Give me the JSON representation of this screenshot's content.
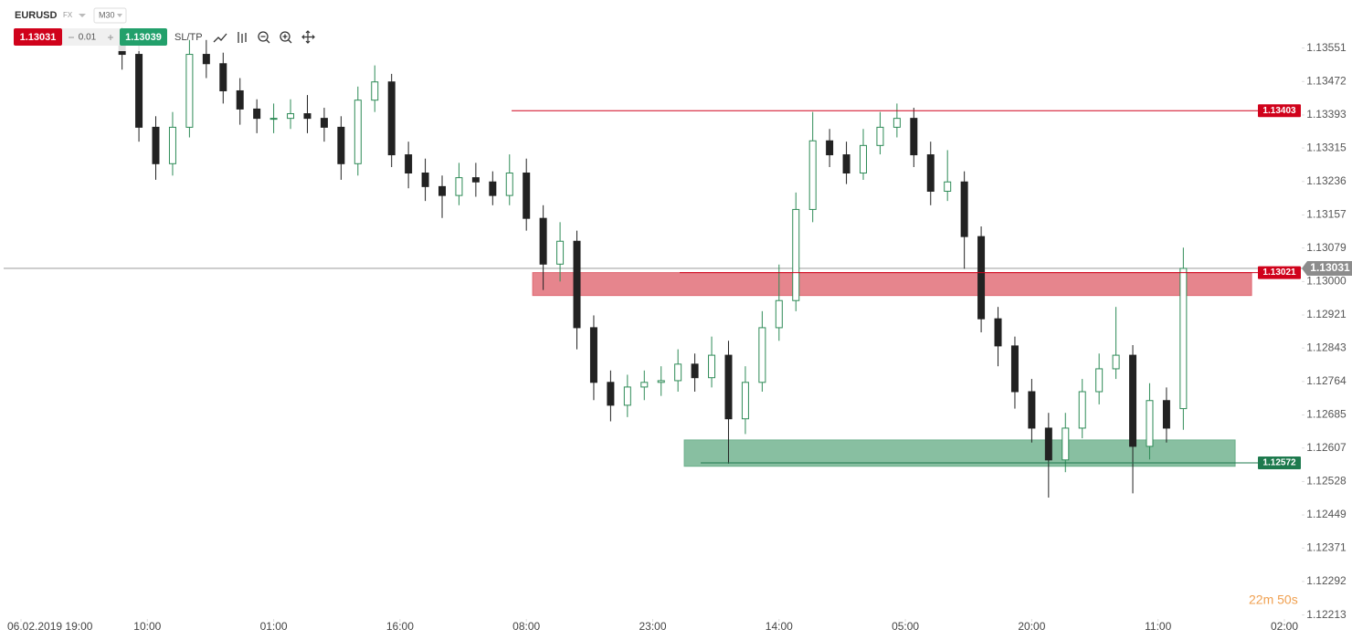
{
  "header": {
    "symbol": "EURUSD",
    "market": "FX",
    "timeframe": "M30",
    "bid": "1.13031",
    "lot": "0.01",
    "ask": "1.13039",
    "sltp": "SL/TP"
  },
  "chart_data": {
    "type": "candlestick",
    "x": [
      24,
      28,
      32,
      36,
      40,
      44,
      48,
      52,
      56,
      60,
      64,
      68,
      72,
      76,
      80,
      84,
      88,
      92,
      96,
      100,
      104,
      108,
      112,
      116,
      120,
      124,
      128,
      132,
      136,
      140,
      144,
      148,
      152,
      156,
      160,
      164,
      168,
      172,
      176,
      180,
      184,
      188,
      192,
      196,
      200,
      204,
      208,
      212,
      216,
      220,
      224,
      228,
      232,
      236,
      240,
      244,
      248,
      252,
      256,
      260,
      264,
      268,
      272,
      276
    ],
    "open": [
      1.1356,
      1.13536,
      1.13364,
      1.13278,
      1.13364,
      1.13536,
      1.13514,
      1.1345,
      1.13407,
      1.13385,
      1.13385,
      1.13396,
      1.13385,
      1.13364,
      1.13278,
      1.13428,
      1.13471,
      1.13299,
      1.13256,
      1.13224,
      1.13203,
      1.13245,
      1.13235,
      1.13203,
      1.13256,
      1.13149,
      1.13041,
      1.13095,
      1.12891,
      1.12762,
      1.12708,
      1.12751,
      1.12762,
      1.12766,
      1.12805,
      1.12773,
      1.12826,
      1.12676,
      1.12762,
      1.12891,
      1.12955,
      1.1317,
      1.13332,
      1.13299,
      1.13256,
      1.13321,
      1.13364,
      1.13385,
      1.13299,
      1.13213,
      1.13235,
      1.13106,
      1.12912,
      1.12848,
      1.1274,
      1.12654,
      1.12579,
      1.12654,
      1.1274,
      1.12794,
      1.12826,
      1.12611,
      1.12719,
      1.127
    ],
    "high": [
      1.136,
      1.1356,
      1.1339,
      1.134,
      1.1357,
      1.1357,
      1.1354,
      1.1348,
      1.1343,
      1.1342,
      1.1343,
      1.1344,
      1.1341,
      1.1339,
      1.1346,
      1.1351,
      1.1349,
      1.1333,
      1.1329,
      1.1325,
      1.1328,
      1.1328,
      1.1326,
      1.133,
      1.1329,
      1.1318,
      1.1314,
      1.1312,
      1.1292,
      1.1279,
      1.1278,
      1.1279,
      1.128,
      1.1284,
      1.1283,
      1.1287,
      1.1286,
      1.128,
      1.1293,
      1.1304,
      1.1321,
      1.134,
      1.1336,
      1.1333,
      1.1336,
      1.134,
      1.1342,
      1.1341,
      1.1333,
      1.1331,
      1.1326,
      1.1313,
      1.1294,
      1.1287,
      1.1277,
      1.1269,
      1.1269,
      1.1277,
      1.1283,
      1.1294,
      1.1285,
      1.1276,
      1.1275,
      1.1308
    ],
    "low": [
      1.135,
      1.1333,
      1.1324,
      1.1325,
      1.1334,
      1.1348,
      1.1342,
      1.1337,
      1.1335,
      1.1335,
      1.1336,
      1.1335,
      1.1333,
      1.1324,
      1.1325,
      1.134,
      1.1327,
      1.1322,
      1.1319,
      1.1315,
      1.1318,
      1.132,
      1.1318,
      1.1318,
      1.1312,
      1.1298,
      1.13,
      1.1284,
      1.1272,
      1.1267,
      1.1268,
      1.1272,
      1.1273,
      1.1274,
      1.1274,
      1.1275,
      1.1257,
      1.1264,
      1.1274,
      1.1286,
      1.1293,
      1.1314,
      1.1327,
      1.1323,
      1.1324,
      1.133,
      1.1334,
      1.1327,
      1.1318,
      1.1319,
      1.1303,
      1.1288,
      1.128,
      1.127,
      1.1262,
      1.1249,
      1.1255,
      1.1263,
      1.1271,
      1.1277,
      1.125,
      1.1258,
      1.1262,
      1.1265
    ],
    "close": [
      1.13536,
      1.13364,
      1.13278,
      1.13364,
      1.13536,
      1.13514,
      1.1345,
      1.13407,
      1.13385,
      1.13385,
      1.13396,
      1.13385,
      1.13364,
      1.13278,
      1.13428,
      1.13471,
      1.13299,
      1.13256,
      1.13224,
      1.13203,
      1.13245,
      1.13235,
      1.13203,
      1.13256,
      1.13149,
      1.13041,
      1.13095,
      1.12891,
      1.12762,
      1.12708,
      1.12751,
      1.12762,
      1.12766,
      1.12805,
      1.12773,
      1.12826,
      1.12676,
      1.12762,
      1.12891,
      1.12955,
      1.1317,
      1.13332,
      1.13299,
      1.13256,
      1.13321,
      1.13364,
      1.13385,
      1.13299,
      1.13213,
      1.13235,
      1.13106,
      1.12912,
      1.12848,
      1.1274,
      1.12654,
      1.12579,
      1.12654,
      1.1274,
      1.12794,
      1.12826,
      1.12611,
      1.12719,
      1.12654,
      1.13031
    ],
    "up_color": "#2e8b57",
    "down_color": "#222222",
    "xlim": [
      0,
      300
    ],
    "xticks": [
      {
        "value": 0,
        "label": "06.02.2019 19:00"
      },
      {
        "value": 30,
        "label": "10:00"
      },
      {
        "value": 60,
        "label": "01:00"
      },
      {
        "value": 90,
        "label": "16:00"
      },
      {
        "value": 120,
        "label": "08:00"
      },
      {
        "value": 150,
        "label": "23:00"
      },
      {
        "value": 180,
        "label": "14:00"
      },
      {
        "value": 210,
        "label": "05:00"
      },
      {
        "value": 240,
        "label": "20:00"
      },
      {
        "value": 270,
        "label": "11:00"
      },
      {
        "value": 300,
        "label": "02:00"
      }
    ],
    "ylim": [
      1.1221,
      1.1366
    ],
    "yticks": [
      1.13551,
      1.13472,
      1.13393,
      1.13315,
      1.13236,
      1.13157,
      1.13079,
      {
        "value": 1.13,
        "label": "1.13000"
      },
      1.12921,
      1.12843,
      1.12764,
      1.12685,
      1.12607,
      1.12528,
      1.12449,
      1.12371,
      1.12292,
      1.12213
    ],
    "grid": false,
    "zones": [
      {
        "from": 1.12967,
        "to": 1.13021,
        "x": [
          121.5,
          292.2
        ],
        "color": "#e06670"
      },
      {
        "from": 1.12564,
        "to": 1.12626,
        "x": [
          157.5,
          288.3
        ],
        "color": "#6aaf8a"
      }
    ],
    "levels": [
      {
        "value": 1.13403,
        "x_start": 116.5,
        "color": "#d0021b"
      },
      {
        "value": 1.13021,
        "x_start": 156.4,
        "color": "#d0021b"
      },
      {
        "value": 1.12572,
        "x_start": 161.4,
        "color": "#1e7a4e"
      }
    ],
    "current_price": {
      "value": 1.13031,
      "color": "#8c8c8c"
    },
    "timer": "22m 50s"
  }
}
